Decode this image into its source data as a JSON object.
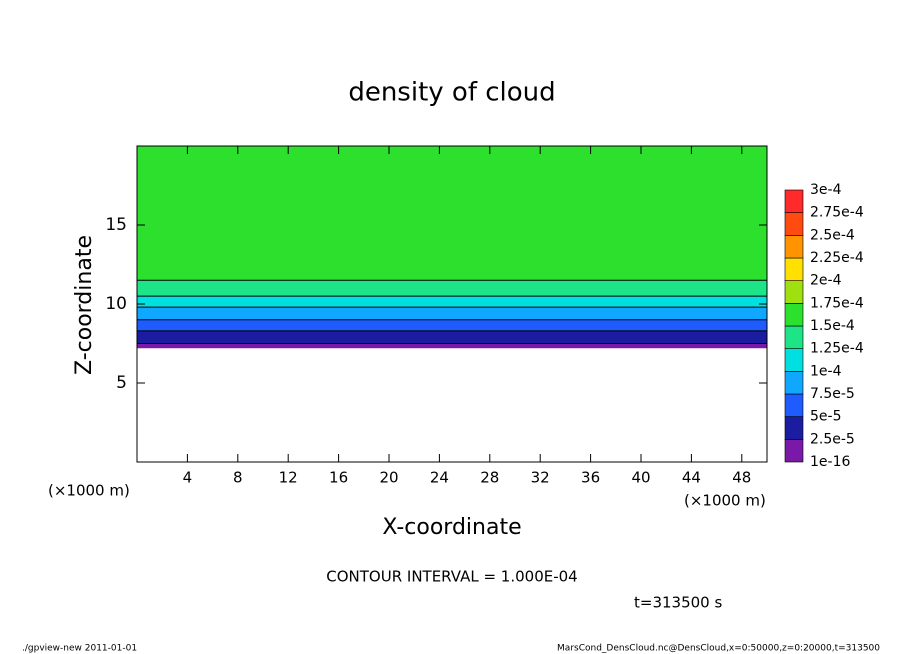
{
  "chart_data": {
    "type": "contour",
    "title": "density of cloud",
    "x_label": "X-coordinate",
    "y_label": "Z-coordinate",
    "x_unit_left": "(×1000 m)",
    "x_unit_right": "(×1000 m)",
    "xlim": [
      0,
      50
    ],
    "xticks": [
      4,
      8,
      12,
      16,
      20,
      24,
      28,
      32,
      36,
      40,
      44,
      48
    ],
    "ylim": [
      0,
      20
    ],
    "yticks": [
      5,
      10,
      15
    ],
    "z_bins": [
      7.2,
      7.5,
      8.3,
      9,
      9.8,
      10.5,
      11.5,
      20
    ],
    "values": [
      1.2e-05,
      3.8e-05,
      6.2e-05,
      8.8e-05,
      0.00011,
      0.00014,
      0.00016
    ],
    "contour_color": "#000000",
    "colorbar": {
      "levels": [
        {
          "value": 1e-16,
          "label": "1e-16"
        },
        {
          "value": 2.5e-05,
          "label": "2.5e-5"
        },
        {
          "value": 5e-05,
          "label": "5e-5"
        },
        {
          "value": 7.5e-05,
          "label": "7.5e-5"
        },
        {
          "value": 0.0001,
          "label": "1e-4"
        },
        {
          "value": 0.000125,
          "label": "1.25e-4"
        },
        {
          "value": 0.00015,
          "label": "1.5e-4"
        },
        {
          "value": 0.000175,
          "label": "1.75e-4"
        },
        {
          "value": 0.0002,
          "label": "2e-4"
        },
        {
          "value": 0.000225,
          "label": "2.25e-4"
        },
        {
          "value": 0.00025,
          "label": "2.5e-4"
        },
        {
          "value": 0.000275,
          "label": "2.75e-4"
        },
        {
          "value": 0.0003,
          "label": "3e-4"
        }
      ],
      "colors": [
        "#7a18a8",
        "#1c1ca0",
        "#1e5cff",
        "#10a8ff",
        "#00e0e0",
        "#1ee488",
        "#2ee02e",
        "#a0e010",
        "#ffe000",
        "#ff9400",
        "#ff4a10",
        "#ff2a2a"
      ],
      "top_color": "#ff9090"
    },
    "contour_interval": "CONTOUR INTERVAL = 1.000E-04",
    "time_label": "t=313500 s",
    "footer_left": "./gpview-new  2011-01-01",
    "footer_right": "MarsCond_DensCloud.nc@DensCloud,x=0:50000,z=0:20000,t=313500"
  }
}
